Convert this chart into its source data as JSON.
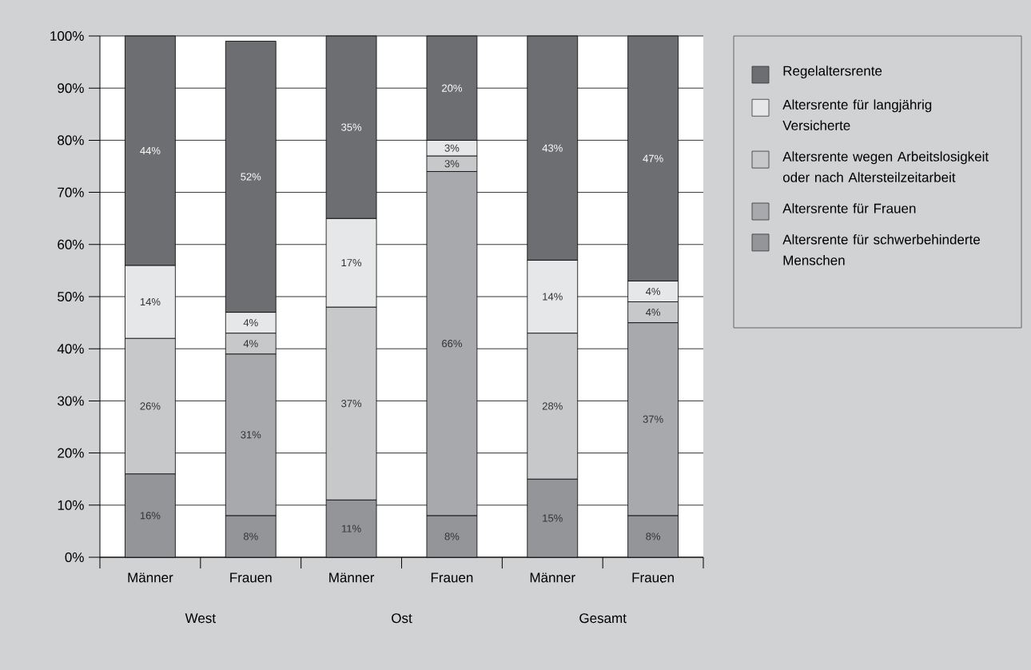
{
  "chart_data": {
    "type": "bar",
    "stacked": true,
    "categories": [
      "Männer",
      "Frauen",
      "Männer",
      "Frauen",
      "Männer",
      "Frauen"
    ],
    "annotations": [
      "West",
      "Ost",
      "Gesamt"
    ],
    "series": [
      {
        "name": "Altersrente für schwerbehinderte Menschen",
        "color": "#939598",
        "values": [
          16,
          8,
          11,
          8,
          15,
          8
        ],
        "value_labels": [
          "16%",
          "8%",
          "11%",
          "8%",
          "15%",
          "8%"
        ]
      },
      {
        "name": "Altersrente für Frauen",
        "color": "#a7a9ac",
        "values": [
          null,
          31,
          null,
          66,
          null,
          37
        ],
        "value_labels": [
          null,
          "31%",
          null,
          "66%",
          null,
          "37%"
        ]
      },
      {
        "name": "Altersrente wegen Arbeitslosigkeit oder nach Altersteilzeitarbeit",
        "color": "#c7c8ca",
        "values": [
          26,
          4,
          37,
          3,
          28,
          4
        ],
        "value_labels": [
          "26%",
          "4%",
          "37%",
          "3%",
          "28%",
          "4%"
        ]
      },
      {
        "name": "Altersrente für langjährig Versicherte",
        "color": "#e6e7e8",
        "values": [
          14,
          4,
          17,
          3,
          14,
          4
        ],
        "value_labels": [
          "14%",
          "4%",
          "17%",
          "3%",
          "14%",
          "4%"
        ]
      },
      {
        "name": "Regelaltersrente",
        "color": "#6d6e71",
        "values": [
          44,
          52,
          35,
          20,
          43,
          47
        ],
        "value_labels": [
          "44%",
          "52%",
          "35%",
          "20%",
          "43%",
          "47%"
        ]
      }
    ],
    "ylim": [
      0,
      100
    ],
    "yticks": [
      {
        "value": 0,
        "label": "0%"
      },
      {
        "value": 10,
        "label": "10%"
      },
      {
        "value": 20,
        "label": "20%"
      },
      {
        "value": 30,
        "label": "30%"
      },
      {
        "value": 40,
        "label": "40%"
      },
      {
        "value": 50,
        "label": "50%"
      },
      {
        "value": 60,
        "label": "60%"
      },
      {
        "value": 70,
        "label": "70%"
      },
      {
        "value": 80,
        "label": "80%"
      },
      {
        "value": 90,
        "label": "90%"
      },
      {
        "value": 100,
        "label": "100%"
      }
    ],
    "grid": "y",
    "legend": "right"
  }
}
